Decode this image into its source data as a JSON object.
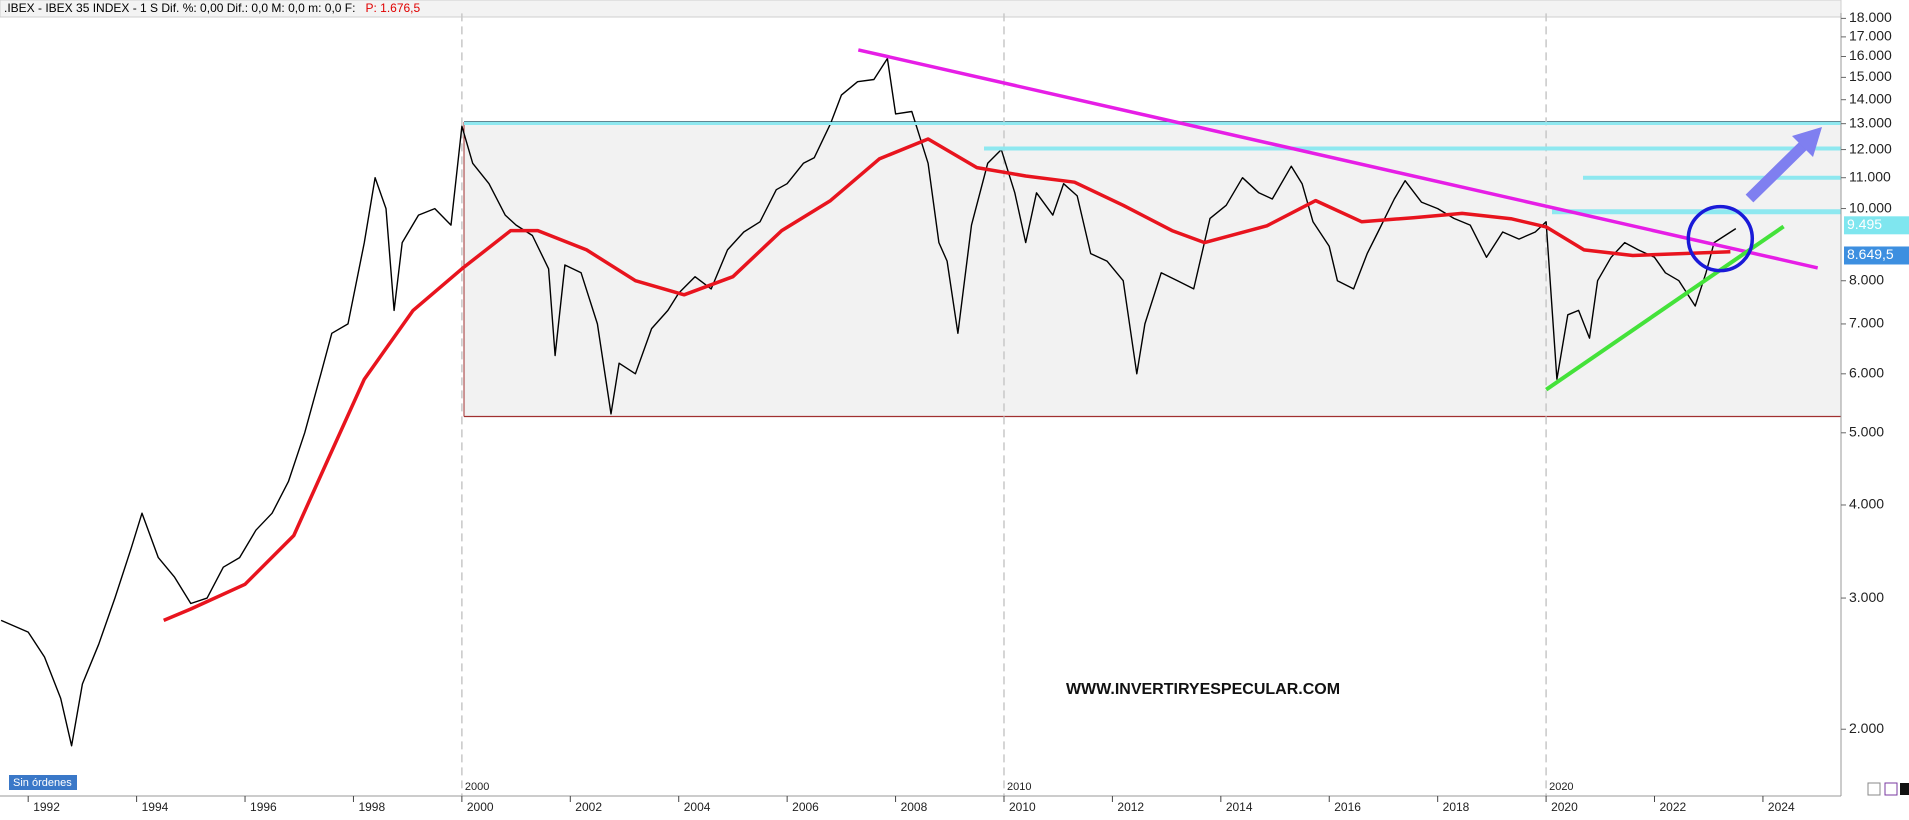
{
  "chart_data": {
    "type": "line",
    "header": {
      "text": ".IBEX - IBEX 35 INDEX -  1 S  Dif. %: 0,00  Dif.: 0,0  M: 0,0  m: 0,0  F:",
      "price": "P: 1.676,5"
    },
    "watermark": "WWW.INVERTIRYESPECULAR.COM",
    "button": "Sin órdenes",
    "log_scale": true,
    "grid": false,
    "xlim": [
      1991.48,
      2025.44
    ],
    "ylim": [
      1627,
      18280
    ],
    "xticks": [
      1992,
      1994,
      1996,
      1998,
      2000,
      2002,
      2004,
      2006,
      2008,
      2010,
      2012,
      2014,
      2016,
      2018,
      2020,
      2022,
      2024
    ],
    "decade_markers": [
      2000,
      2010,
      2020
    ],
    "yticks": [
      {
        "value": 2000,
        "label": "2.000"
      },
      {
        "value": 3000,
        "label": "3.000"
      },
      {
        "value": 4000,
        "label": "4.000"
      },
      {
        "value": 5000,
        "label": "5.000"
      },
      {
        "value": 6000,
        "label": "6.000"
      },
      {
        "value": 7000,
        "label": "7.000"
      },
      {
        "value": 8000,
        "label": "8.000"
      },
      {
        "value": 10000,
        "label": "10.000"
      },
      {
        "value": 11000,
        "label": "11.000"
      },
      {
        "value": 12000,
        "label": "12.000"
      },
      {
        "value": 13000,
        "label": "13.000"
      },
      {
        "value": 14000,
        "label": "14.000"
      },
      {
        "value": 15000,
        "label": "15.000"
      },
      {
        "value": 16000,
        "label": "16.000"
      },
      {
        "value": 17000,
        "label": "17.000"
      },
      {
        "value": 18000,
        "label": "18.000"
      }
    ],
    "price_labels": [
      {
        "value": 9495,
        "label": "9.495",
        "color": "#7fe6ef"
      },
      {
        "value": 8649.5,
        "label": "8.649,5",
        "color": "#3d8fe0"
      }
    ],
    "series": [
      {
        "color": "#000000",
        "x": [
          1991.5,
          1992.0,
          1992.3,
          1992.6,
          1992.8,
          1993.0,
          1993.3,
          1993.6,
          1993.9,
          1994.1,
          1994.4,
          1994.7,
          1995.0,
          1995.3,
          1995.6,
          1995.9,
          1996.2,
          1996.5,
          1996.8,
          1997.1,
          1997.4,
          1997.6,
          1997.9,
          1998.2,
          1998.4,
          1998.6,
          1998.75,
          1998.9,
          1999.2,
          1999.5,
          1999.8,
          2000.0,
          2000.2,
          2000.5,
          2000.8,
          2001.0,
          2001.3,
          2001.6,
          2001.72,
          2001.9,
          2002.2,
          2002.5,
          2002.75,
          2002.9,
          2003.2,
          2003.5,
          2003.8,
          2004.0,
          2004.3,
          2004.6,
          2004.9,
          2005.2,
          2005.5,
          2005.8,
          2006.0,
          2006.3,
          2006.5,
          2006.8,
          2007.0,
          2007.3,
          2007.6,
          2007.85,
          2008.0,
          2008.3,
          2008.6,
          2008.8,
          2008.95,
          2009.15,
          2009.4,
          2009.7,
          2009.95,
          2010.2,
          2010.4,
          2010.6,
          2010.9,
          2011.1,
          2011.35,
          2011.6,
          2011.9,
          2012.2,
          2012.45,
          2012.6,
          2012.9,
          2013.2,
          2013.5,
          2013.8,
          2014.1,
          2014.4,
          2014.7,
          2014.95,
          2015.3,
          2015.5,
          2015.7,
          2016.0,
          2016.15,
          2016.45,
          2016.7,
          2016.9,
          2017.2,
          2017.4,
          2017.7,
          2018.0,
          2018.3,
          2018.6,
          2018.9,
          2019.2,
          2019.5,
          2019.8,
          2020.0,
          2020.2,
          2020.4,
          2020.6,
          2020.8,
          2020.95,
          2021.2,
          2021.45,
          2021.7,
          2022.0,
          2022.2,
          2022.45,
          2022.75,
          2022.95,
          2023.1,
          2023.5
        ],
        "values": [
          2800,
          2700,
          2500,
          2200,
          1900,
          2300,
          2600,
          3000,
          3500,
          3900,
          3400,
          3200,
          2950,
          3000,
          3300,
          3400,
          3700,
          3900,
          4300,
          5000,
          6000,
          6800,
          7000,
          9000,
          11000,
          10000,
          7300,
          9000,
          9800,
          10000,
          9500,
          12900,
          11500,
          10800,
          9800,
          9500,
          9200,
          8300,
          6350,
          8400,
          8200,
          7000,
          5300,
          6200,
          6000,
          6900,
          7300,
          7700,
          8100,
          7800,
          8800,
          9300,
          9600,
          10600,
          10800,
          11500,
          11700,
          13000,
          14200,
          14800,
          14900,
          15900,
          13400,
          13500,
          11500,
          9000,
          8500,
          6800,
          9500,
          11500,
          12000,
          10500,
          9000,
          10500,
          9800,
          10800,
          10400,
          8700,
          8500,
          8000,
          6000,
          7000,
          8200,
          8000,
          7800,
          9700,
          10100,
          11000,
          10500,
          10300,
          11400,
          10800,
          9600,
          8900,
          8000,
          7800,
          8700,
          9300,
          10300,
          10900,
          10200,
          10000,
          9700,
          9500,
          8600,
          9300,
          9100,
          9300,
          9600,
          5900,
          7200,
          7300,
          6700,
          8000,
          8600,
          9000,
          8800,
          8600,
          8200,
          8000,
          7400,
          8200,
          9000,
          9400
        ]
      },
      {
        "color": "#e8141e",
        "x": [
          1994.5,
          1995.0,
          1996.0,
          1996.9,
          1997.55,
          1998.2,
          1999.1,
          2000.0,
          2000.9,
          2001.4,
          2002.3,
          2003.2,
          2004.1,
          2005.0,
          2005.9,
          2006.8,
          2007.7,
          2008.6,
          2009.5,
          2010.4,
          2011.3,
          2012.2,
          2013.1,
          2013.7,
          2014.85,
          2015.75,
          2016.6,
          2017.55,
          2018.45,
          2019.35,
          2020.0,
          2020.7,
          2021.6,
          2022.5,
          2023.4
        ],
        "values": [
          2800,
          2900,
          3130,
          3640,
          4640,
          5900,
          7300,
          8300,
          9340,
          9340,
          8800,
          8000,
          7660,
          8100,
          9340,
          10250,
          11660,
          12400,
          11350,
          11060,
          10850,
          10100,
          9340,
          9000,
          9480,
          10250,
          9600,
          9720,
          9850,
          9690,
          9450,
          8800,
          8650,
          8700,
          8750
        ]
      }
    ]
  }
}
